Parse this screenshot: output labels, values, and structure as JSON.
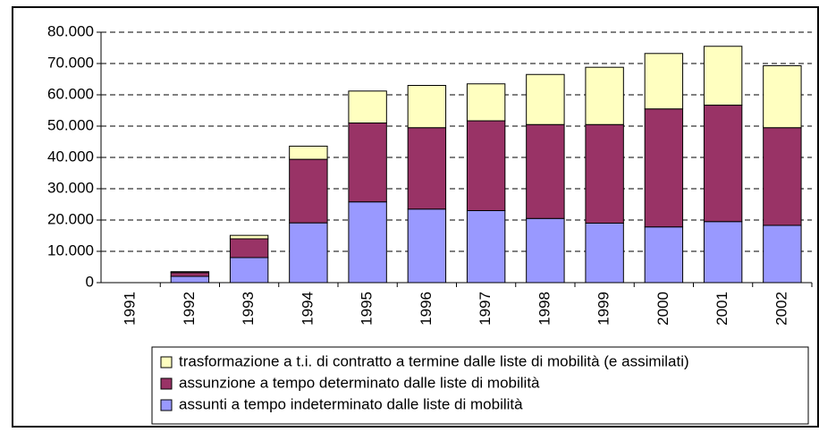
{
  "chart_data": {
    "type": "stacked_bar",
    "categories": [
      "1991",
      "1992",
      "1993",
      "1994",
      "1995",
      "1996",
      "1997",
      "1998",
      "1999",
      "2000",
      "2001",
      "2002"
    ],
    "series": [
      {
        "name": "assunti a tempo indeterminato dalle liste di mobilità",
        "color": "#9999ff",
        "values": [
          0,
          2000,
          8000,
          19100,
          25800,
          23500,
          23000,
          20500,
          19000,
          17800,
          19500,
          18300
        ]
      },
      {
        "name": "assunzione a tempo determinato dalle liste di mobilità",
        "color": "#993366",
        "values": [
          0,
          1200,
          6000,
          20300,
          25200,
          26000,
          28700,
          30000,
          31500,
          37700,
          37200,
          31200
        ]
      },
      {
        "name": "trasformazione a t.i. di contratto a termine dalle liste di mobilità (e assimilati)",
        "color": "#ffffc0",
        "values": [
          0,
          300,
          1100,
          4200,
          10200,
          13500,
          11800,
          16000,
          18300,
          17700,
          18800,
          19800
        ]
      }
    ],
    "ylim": [
      0,
      80000
    ],
    "yticks": [
      0,
      {
        "value": 10000,
        "label": "10.000"
      },
      {
        "value": 20000,
        "label": "20.000"
      },
      {
        "value": 30000,
        "label": "30.000"
      },
      {
        "value": 40000,
        "label": "40.000"
      },
      {
        "value": 50000,
        "label": "50.000"
      },
      {
        "value": 60000,
        "label": "60.000"
      },
      {
        "value": 70000,
        "label": "70.000"
      },
      {
        "value": 80000,
        "label": "80.000"
      }
    ],
    "grid": true,
    "legend": "bottom"
  }
}
